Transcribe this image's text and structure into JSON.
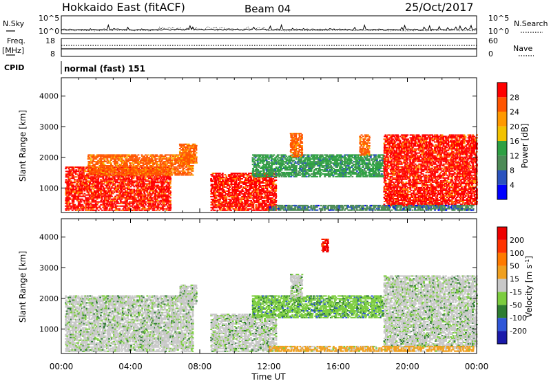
{
  "header": {
    "radar": "Hokkaido East (fitACF)",
    "beam": "Beam 04",
    "date": "25/Oct/2017"
  },
  "top_panels": {
    "nsky_label": "N.Sky",
    "nsky_ticks": [
      "10^5",
      "10^0"
    ],
    "nsearch_label": "N.Search",
    "freq_label": "Freq.",
    "freq_unit": "[MHz]",
    "freq_ticks": [
      "18",
      "8"
    ],
    "nave_label": "Nave",
    "nave_ticks": [
      "60",
      "0"
    ],
    "cpid_label": "CPID",
    "cpid_value": "normal (fast) 151"
  },
  "colors": {
    "power": [
      "#0000ff",
      "#2a52be",
      "#4d8b57",
      "#2ea043",
      "#f2c200",
      "#ff9900",
      "#ff5500",
      "#ff0000"
    ],
    "velocity": [
      "#1a1aaa",
      "#2f56d8",
      "#2e7d32",
      "#7ccd3f",
      "#c8c8c8",
      "#f0a020",
      "#ff7a00",
      "#ff3300",
      "#ee0000"
    ]
  },
  "chart_data": [
    {
      "type": "heatmap",
      "title": "Power",
      "ylabel": "Slant Range [km]",
      "xlabel": "",
      "x_ticks": [
        "00:00",
        "04:00",
        "08:00",
        "12:00",
        "16:00",
        "20:00",
        "00:00"
      ],
      "y_ticks": [
        "1000",
        "2000",
        "3000",
        "4000"
      ],
      "ylim": [
        200,
        4600
      ],
      "colorbar_label": "Power [dB]",
      "colorbar_ticks": [
        "4",
        "8",
        "12",
        "16",
        "20",
        "24",
        "28"
      ],
      "regions": [
        {
          "t0": 0.2,
          "t1": 6.3,
          "r0": 250,
          "r1": 1700,
          "level": 7
        },
        {
          "t0": 1.5,
          "t1": 7.6,
          "r0": 1400,
          "r1": 2100,
          "level": 6
        },
        {
          "t0": 6.8,
          "t1": 7.8,
          "r0": 1800,
          "r1": 2450,
          "level": 6
        },
        {
          "t0": 8.6,
          "t1": 12.4,
          "r0": 250,
          "r1": 1500,
          "level": 7
        },
        {
          "t0": 11.0,
          "t1": 18.6,
          "r0": 1350,
          "r1": 2100,
          "level": 3
        },
        {
          "t0": 13.2,
          "t1": 13.9,
          "r0": 2000,
          "r1": 2800,
          "level": 6
        },
        {
          "t0": 17.2,
          "t1": 17.8,
          "r0": 2050,
          "r1": 2750,
          "level": 6
        },
        {
          "t0": 18.6,
          "t1": 24.0,
          "r0": 400,
          "r1": 2750,
          "level": 7
        },
        {
          "t0": 12.0,
          "t1": 23.8,
          "r0": 250,
          "r1": 450,
          "level": 2
        }
      ]
    },
    {
      "type": "heatmap",
      "title": "Velocity",
      "ylabel": "Slant Range [km]",
      "xlabel": "Time UT",
      "x_ticks": [
        "00:00",
        "04:00",
        "08:00",
        "12:00",
        "16:00",
        "20:00",
        "00:00"
      ],
      "y_ticks": [
        "1000",
        "2000",
        "3000",
        "4000"
      ],
      "ylim": [
        200,
        4600
      ],
      "colorbar_label": "Velocity [m s^-1]",
      "colorbar_ticks": [
        "200",
        "100",
        "50",
        "15",
        "-15",
        "-50",
        "-100",
        "-200"
      ],
      "regions": [
        {
          "t0": 0.2,
          "t1": 7.6,
          "r0": 250,
          "r1": 2100,
          "level": 4
        },
        {
          "t0": 6.8,
          "t1": 7.8,
          "r0": 1800,
          "r1": 2450,
          "level": 4
        },
        {
          "t0": 8.6,
          "t1": 12.4,
          "r0": 250,
          "r1": 1500,
          "level": 4
        },
        {
          "t0": 11.0,
          "t1": 18.6,
          "r0": 1350,
          "r1": 2100,
          "level": 3
        },
        {
          "t0": 13.2,
          "t1": 13.9,
          "r0": 2000,
          "r1": 2800,
          "level": 4
        },
        {
          "t0": 18.6,
          "t1": 24.0,
          "r0": 400,
          "r1": 2750,
          "level": 4
        },
        {
          "t0": 12.0,
          "t1": 23.8,
          "r0": 250,
          "r1": 450,
          "level": 5
        },
        {
          "t0": 15.0,
          "t1": 15.4,
          "r0": 3500,
          "r1": 3950,
          "level": 8
        }
      ]
    }
  ]
}
